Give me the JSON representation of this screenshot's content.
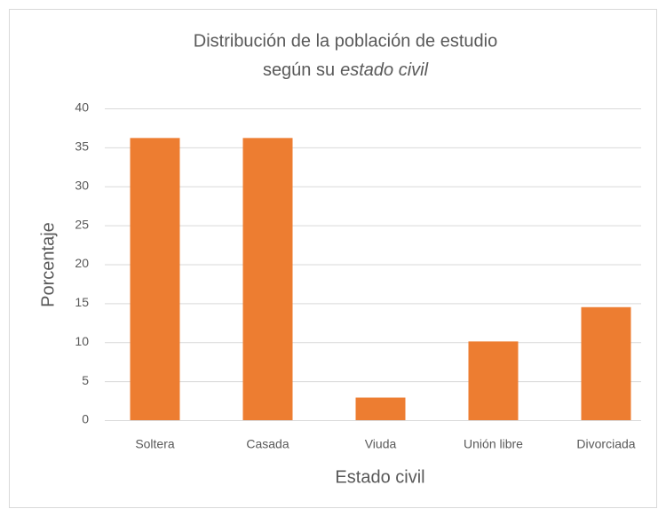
{
  "chart_data": {
    "type": "bar",
    "title": [
      "Distribución de la población de estudio",
      "según su",
      "estado civil"
    ],
    "x_label": "Estado civil",
    "y_label": "Porcentaje",
    "categories": [
      "Soltera",
      "Casada",
      "Viuda",
      "Unión libre",
      "Divorciada"
    ],
    "values": [
      36.2,
      36.2,
      2.9,
      10.1,
      14.5
    ],
    "color": "#ed7d31",
    "ylim": [
      0,
      40
    ],
    "yticks": [
      0,
      5,
      10,
      15,
      20,
      25,
      30,
      35,
      40
    ],
    "grid": true
  }
}
